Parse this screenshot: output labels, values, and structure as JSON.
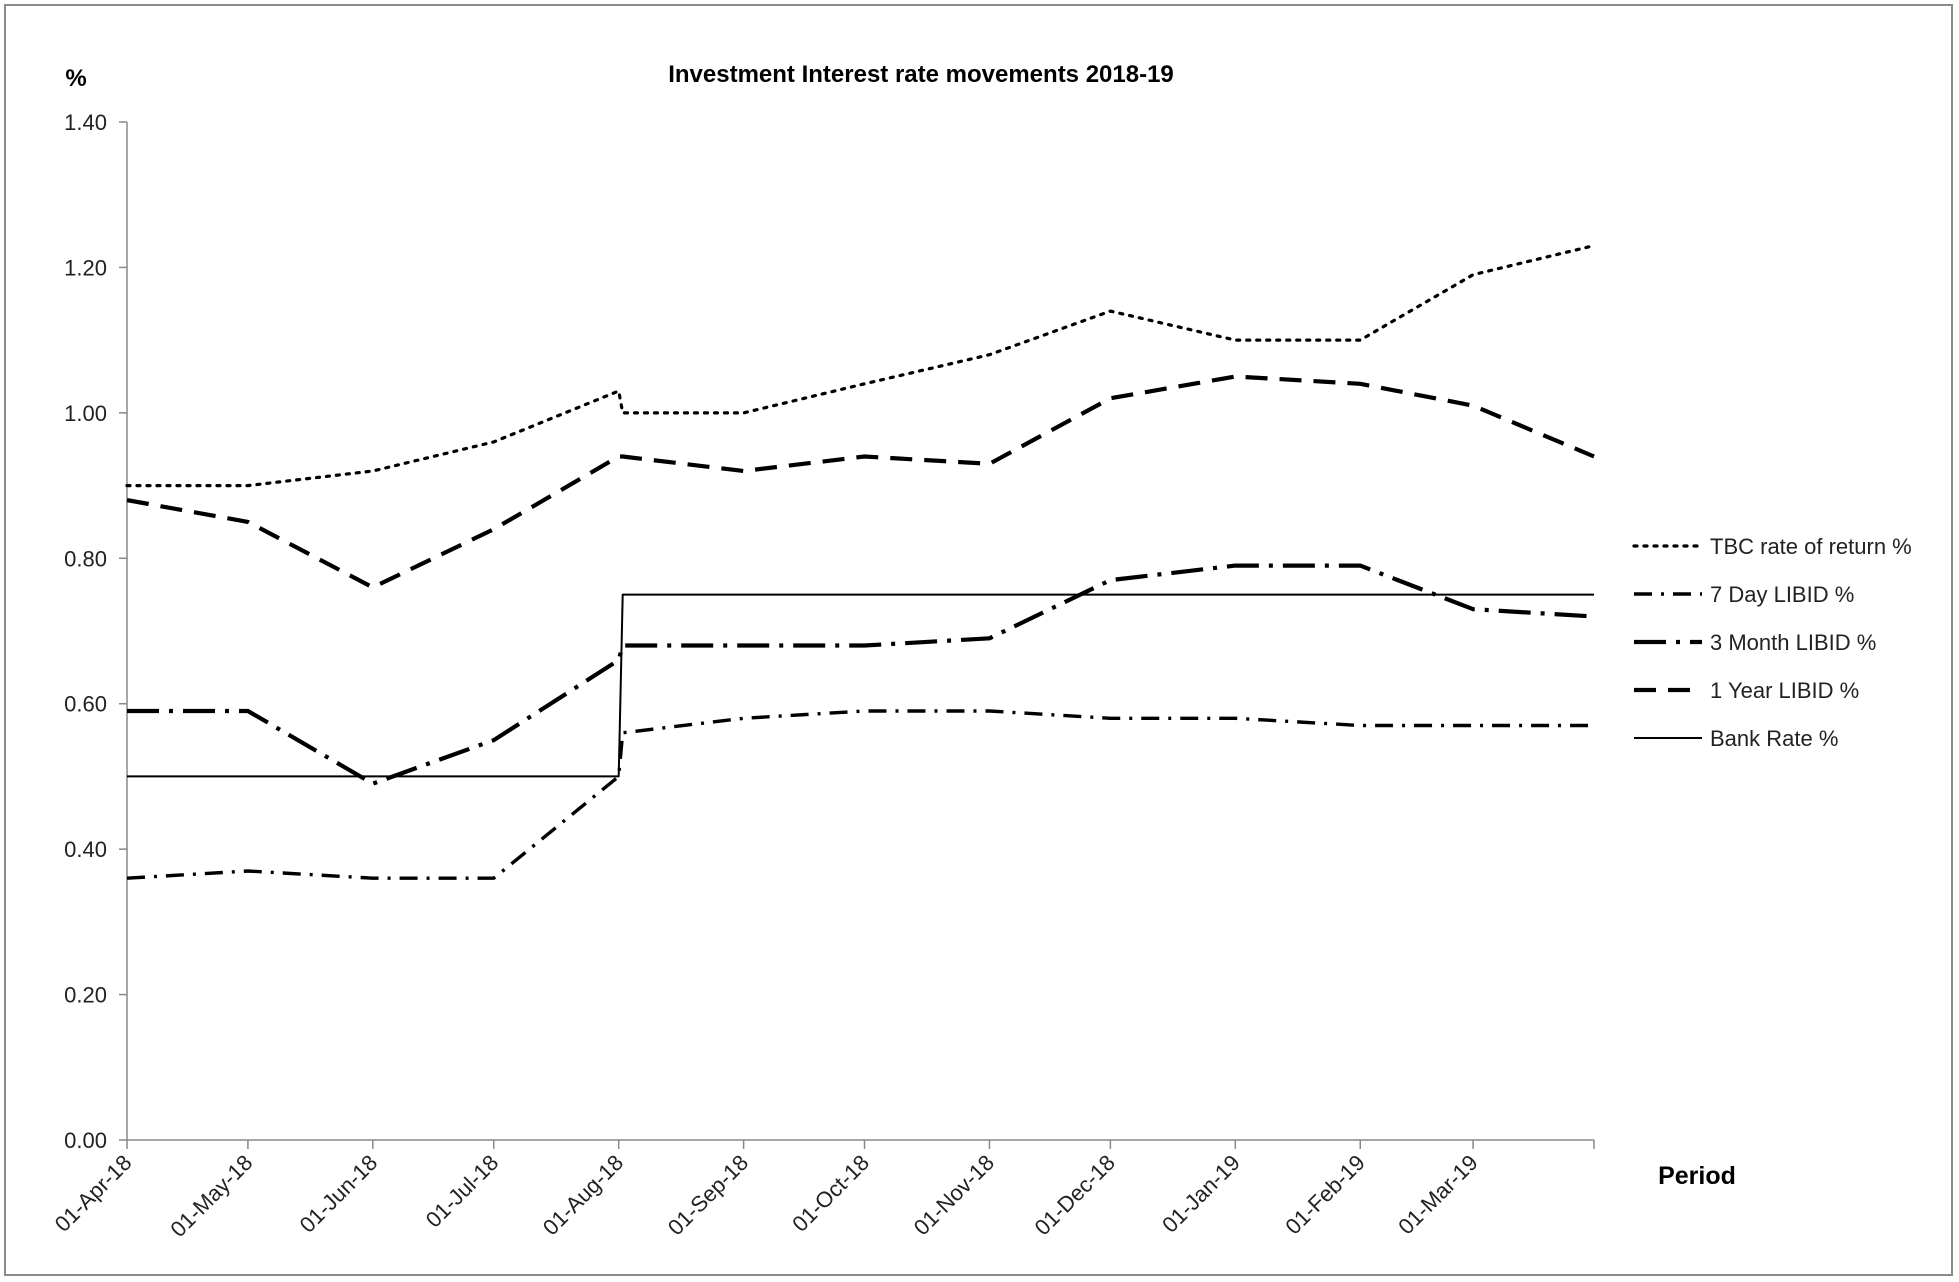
{
  "chart_data": {
    "type": "line",
    "title": "Investment Interest rate movements 2018-19",
    "ylabel": "%",
    "xlabel": "Period",
    "ylim": [
      0,
      1.4
    ],
    "ytick_labels": [
      "0.00",
      "0.20",
      "0.40",
      "0.60",
      "0.80",
      "1.00",
      "1.20",
      "1.40"
    ],
    "xtick_labels": [
      "01-Apr-18",
      "01-May-18",
      "01-Jun-18",
      "01-Jul-18",
      "01-Aug-18",
      "01-Sep-18",
      "01-Oct-18",
      "01-Nov-18",
      "01-Dec-18",
      "01-Jan-19",
      "01-Feb-19",
      "01-Mar-19"
    ],
    "x": [
      "2018-04-01",
      "2018-05-01",
      "2018-06-01",
      "2018-07-01",
      "2018-08-01",
      "2018-08-02",
      "2018-09-01",
      "2018-10-01",
      "2018-11-01",
      "2018-12-01",
      "2019-01-01",
      "2019-02-01",
      "2019-03-01",
      "2019-03-31"
    ],
    "legend_position": "right",
    "grid": false,
    "series": [
      {
        "name": "TBC rate of return %",
        "style": "dotted",
        "color": "#000000",
        "values": [
          0.9,
          0.9,
          0.92,
          0.96,
          1.03,
          1.0,
          1.0,
          1.04,
          1.08,
          1.14,
          1.1,
          1.1,
          1.19,
          1.23
        ]
      },
      {
        "name": "7 Day LIBID %",
        "style": "dash-dot",
        "color": "#000000",
        "values": [
          0.36,
          0.37,
          0.36,
          0.36,
          0.5,
          0.56,
          0.58,
          0.59,
          0.59,
          0.58,
          0.58,
          0.57,
          0.57,
          0.57
        ]
      },
      {
        "name": "3 Month LIBID %",
        "style": "long-dash-dot",
        "color": "#000000",
        "values": [
          0.59,
          0.59,
          0.49,
          0.55,
          0.66,
          0.68,
          0.68,
          0.68,
          0.69,
          0.77,
          0.79,
          0.79,
          0.73,
          0.72
        ]
      },
      {
        "name": "1 Year LIBID %",
        "style": "dashed",
        "color": "#000000",
        "values": [
          0.88,
          0.85,
          0.76,
          0.84,
          0.94,
          0.94,
          0.92,
          0.94,
          0.93,
          1.02,
          1.05,
          1.04,
          1.01,
          0.94
        ]
      },
      {
        "name": "Bank  Rate %",
        "style": "solid",
        "color": "#000000",
        "values": [
          0.5,
          0.5,
          0.5,
          0.5,
          0.5,
          0.75,
          0.75,
          0.75,
          0.75,
          0.75,
          0.75,
          0.75,
          0.75,
          0.75
        ]
      }
    ]
  }
}
